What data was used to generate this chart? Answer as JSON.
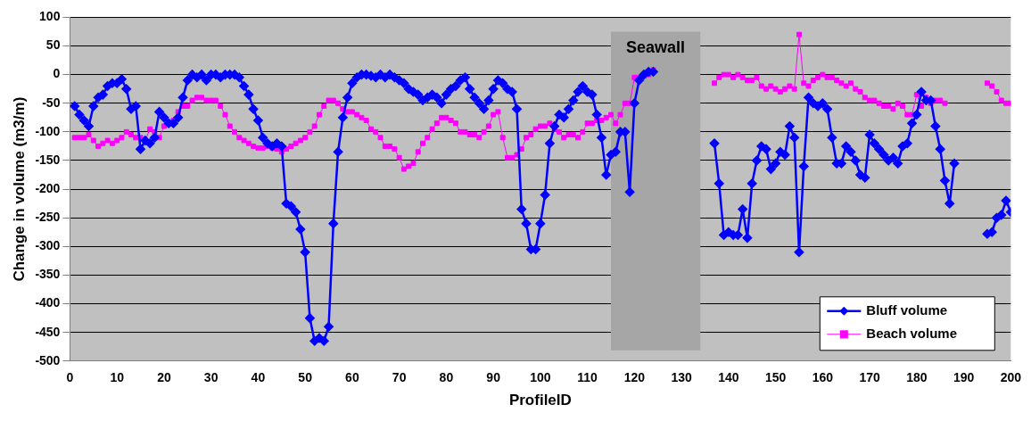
{
  "chart_data": {
    "type": "line",
    "xlabel": "ProfileID",
    "ylabel": "Change in volume (m3/m)",
    "xlim": [
      0,
      200
    ],
    "xticks": [
      0,
      10,
      20,
      30,
      40,
      50,
      60,
      70,
      80,
      90,
      100,
      110,
      120,
      130,
      140,
      150,
      160,
      170,
      180,
      190,
      200
    ],
    "ylim": [
      -500,
      100
    ],
    "yticks": [
      100,
      50,
      0,
      -50,
      -100,
      -150,
      -200,
      -250,
      -300,
      -350,
      -400,
      -450,
      -500
    ],
    "grid": "y",
    "legend": "bottom right",
    "bands": [
      {
        "axis": "x",
        "from": 115,
        "to": 134,
        "label": "Seawall",
        "color": "#a6a6a6"
      }
    ],
    "series": [
      {
        "name": "Bluff volume",
        "color": "#0000ff",
        "marker": "diamond",
        "x": [
          1,
          2,
          3,
          4,
          5,
          6,
          7,
          8,
          9,
          10,
          11,
          12,
          13,
          14,
          15,
          16,
          17,
          18,
          19,
          20,
          21,
          22,
          23,
          24,
          25,
          26,
          27,
          28,
          29,
          30,
          31,
          32,
          33,
          34,
          35,
          36,
          37,
          38,
          39,
          40,
          41,
          42,
          43,
          44,
          45,
          46,
          47,
          48,
          49,
          50,
          51,
          52,
          53,
          54,
          55,
          56,
          57,
          58,
          59,
          60,
          61,
          62,
          63,
          64,
          65,
          66,
          67,
          68,
          69,
          70,
          71,
          72,
          73,
          74,
          75,
          76,
          77,
          78,
          79,
          80,
          81,
          82,
          83,
          84,
          85,
          86,
          87,
          88,
          89,
          90,
          91,
          92,
          93,
          94,
          95,
          96,
          97,
          98,
          99,
          100,
          101,
          102,
          103,
          104,
          105,
          106,
          107,
          108,
          109,
          110,
          111,
          112,
          113,
          114,
          115,
          116,
          117,
          118,
          119,
          120,
          121,
          122,
          123,
          124,
          125,
          137,
          138,
          139,
          140,
          141,
          142,
          143,
          144,
          145,
          146,
          147,
          148,
          149,
          150,
          151,
          152,
          153,
          154,
          155,
          156,
          157,
          158,
          159,
          160,
          161,
          162,
          163,
          164,
          165,
          166,
          167,
          168,
          169,
          170,
          171,
          172,
          173,
          174,
          175,
          176,
          177,
          178,
          179,
          180,
          181,
          182,
          183,
          184,
          185,
          186,
          187,
          188,
          190,
          195,
          196,
          197,
          198,
          199,
          200
        ],
        "values": [
          -55,
          -70,
          -80,
          -90,
          -55,
          -40,
          -35,
          -20,
          -15,
          -15,
          -8,
          -25,
          -60,
          -55,
          -130,
          -115,
          -120,
          -110,
          -65,
          -75,
          -85,
          -85,
          -75,
          -40,
          -10,
          0,
          -5,
          0,
          -10,
          0,
          0,
          -5,
          0,
          0,
          0,
          -5,
          -20,
          -35,
          -60,
          -80,
          -110,
          -120,
          -125,
          -120,
          -125,
          -225,
          -230,
          -240,
          -270,
          -310,
          -425,
          -465,
          -460,
          -465,
          -440,
          -260,
          -135,
          -75,
          -40,
          -15,
          -5,
          0,
          0,
          -2,
          -5,
          0,
          -5,
          0,
          -5,
          -10,
          -15,
          -25,
          -30,
          -35,
          -45,
          -40,
          -35,
          -40,
          -50,
          -35,
          -25,
          -20,
          -10,
          -5,
          -25,
          -40,
          -50,
          -60,
          -45,
          -25,
          -10,
          -15,
          -25,
          -30,
          -60,
          -235,
          -260,
          -305,
          -305,
          -260,
          -210,
          -120,
          -90,
          -70,
          -75,
          -60,
          -45,
          -30,
          -20,
          -30,
          -35,
          -70,
          -110,
          -175,
          -140,
          -135,
          -100,
          -100,
          -205,
          -50,
          -10,
          0,
          5,
          5,
          null,
          -120,
          -190,
          -280,
          -275,
          -280,
          -280,
          -235,
          -285,
          -190,
          -150,
          -125,
          -130,
          -165,
          -155,
          -135,
          -140,
          -90,
          -110,
          -310,
          -160,
          -40,
          -50,
          -55,
          -50,
          -60,
          -110,
          -155,
          -155,
          -125,
          -135,
          -150,
          -175,
          -180,
          -105,
          -120,
          -130,
          -140,
          -150,
          -145,
          -155,
          -125,
          -120,
          -85,
          -70,
          -30,
          -45,
          -45,
          -90,
          -130,
          -185,
          -225,
          -155,
          null,
          -278,
          -275,
          -250,
          -245,
          -220,
          -240
        ]
      },
      {
        "name": "Beach volume",
        "color": "#ff00ff",
        "marker": "square",
        "x": [
          1,
          2,
          3,
          4,
          5,
          6,
          7,
          8,
          9,
          10,
          11,
          12,
          13,
          14,
          15,
          16,
          17,
          18,
          19,
          20,
          21,
          22,
          23,
          24,
          25,
          26,
          27,
          28,
          29,
          30,
          31,
          32,
          33,
          34,
          35,
          36,
          37,
          38,
          39,
          40,
          41,
          42,
          43,
          44,
          45,
          46,
          47,
          48,
          49,
          50,
          51,
          52,
          53,
          54,
          55,
          56,
          57,
          58,
          59,
          60,
          61,
          62,
          63,
          64,
          65,
          66,
          67,
          68,
          69,
          70,
          71,
          72,
          73,
          74,
          75,
          76,
          77,
          78,
          79,
          80,
          81,
          82,
          83,
          84,
          85,
          86,
          87,
          88,
          89,
          90,
          91,
          92,
          93,
          94,
          95,
          96,
          97,
          98,
          99,
          100,
          101,
          102,
          103,
          104,
          105,
          106,
          107,
          108,
          109,
          110,
          111,
          112,
          113,
          114,
          115,
          116,
          117,
          118,
          119,
          120,
          121,
          122,
          123,
          124,
          125,
          137,
          138,
          139,
          140,
          141,
          142,
          143,
          144,
          145,
          146,
          147,
          148,
          149,
          150,
          151,
          152,
          153,
          154,
          155,
          156,
          157,
          158,
          159,
          160,
          161,
          162,
          163,
          164,
          165,
          166,
          167,
          168,
          169,
          170,
          171,
          172,
          173,
          174,
          175,
          176,
          177,
          178,
          179,
          180,
          181,
          182,
          183,
          184,
          185,
          186,
          190,
          195,
          196,
          197,
          198,
          199,
          200
        ],
        "values": [
          -110,
          -110,
          -110,
          -105,
          -115,
          -125,
          -120,
          -115,
          -120,
          -115,
          -110,
          -100,
          -105,
          -110,
          -110,
          -115,
          -95,
          -100,
          -110,
          -90,
          -85,
          -80,
          -65,
          -55,
          -55,
          -45,
          -40,
          -40,
          -45,
          -45,
          -45,
          -55,
          -70,
          -90,
          -100,
          -110,
          -115,
          -120,
          -125,
          -128,
          -128,
          -125,
          -128,
          -130,
          -135,
          -130,
          -125,
          -120,
          -115,
          -110,
          -100,
          -90,
          -70,
          -55,
          -45,
          -45,
          -50,
          -60,
          -65,
          -65,
          -70,
          -75,
          -80,
          -95,
          -100,
          -110,
          -125,
          -125,
          -130,
          -145,
          -165,
          -160,
          -155,
          -135,
          -120,
          -110,
          -95,
          -85,
          -75,
          -75,
          -80,
          -85,
          -100,
          -100,
          -105,
          -105,
          -110,
          -100,
          -90,
          -70,
          -65,
          -110,
          -145,
          -145,
          -140,
          -130,
          -110,
          -105,
          -95,
          -90,
          -90,
          -85,
          -95,
          -100,
          -110,
          -105,
          -105,
          -110,
          -100,
          -85,
          -85,
          -80,
          -80,
          -75,
          -70,
          -85,
          -70,
          -50,
          -50,
          -5,
          -5,
          -2,
          0,
          8,
          null,
          -15,
          -5,
          0,
          0,
          -5,
          0,
          -5,
          -10,
          -10,
          -5,
          -20,
          -25,
          -20,
          -25,
          -30,
          -25,
          -20,
          -25,
          70,
          -15,
          -20,
          -10,
          -5,
          0,
          -5,
          -5,
          -10,
          -15,
          -20,
          -15,
          -25,
          -30,
          -40,
          -45,
          -45,
          -50,
          -55,
          -55,
          -60,
          -50,
          -55,
          -70,
          -70,
          -35,
          -55,
          -40,
          -50,
          -45,
          -45,
          -50,
          null,
          -15,
          -20,
          -30,
          -45,
          -50,
          -50
        ]
      }
    ]
  }
}
